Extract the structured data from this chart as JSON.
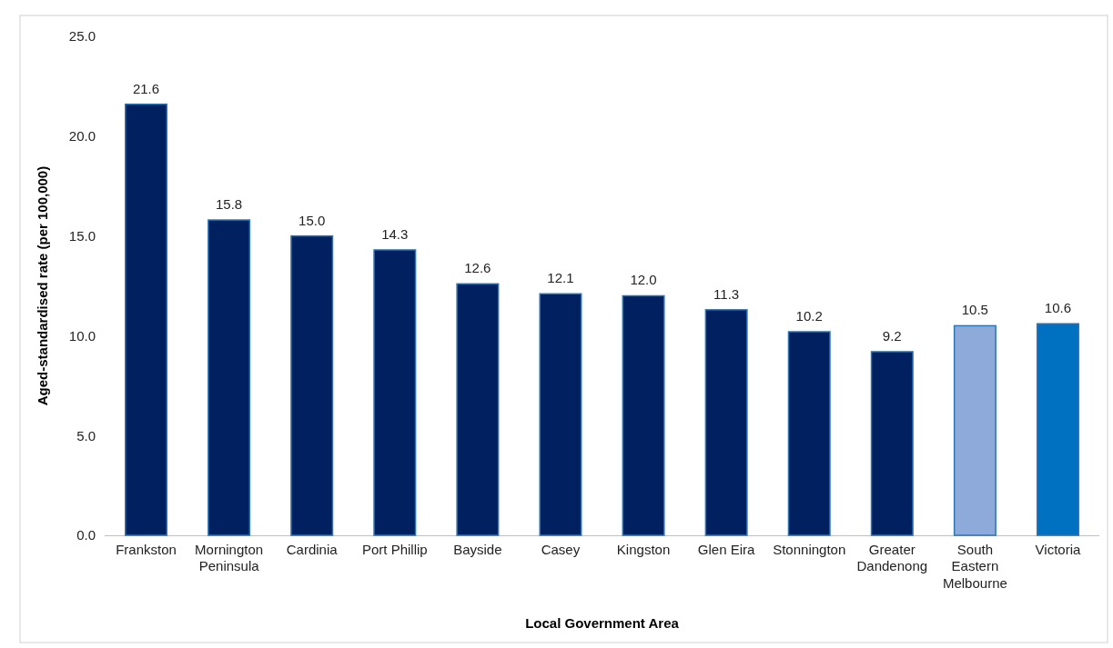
{
  "chart_data": {
    "type": "bar",
    "xlabel": "Local Government Area",
    "ylabel": "Aged-standardised rate (per 100,000)",
    "categories": [
      "Frankston",
      "Mornington Peninsula",
      "Cardinia",
      "Port Phillip",
      "Bayside",
      "Casey",
      "Kingston",
      "Glen Eira",
      "Stonnington",
      "Greater Dandenong",
      "South Eastern Melbourne",
      "Victoria"
    ],
    "values": [
      21.6,
      15.8,
      15.0,
      14.3,
      12.6,
      12.1,
      12.0,
      11.3,
      10.2,
      9.2,
      10.5,
      10.6
    ],
    "colors": [
      "#002060",
      "#002060",
      "#002060",
      "#002060",
      "#002060",
      "#002060",
      "#002060",
      "#002060",
      "#002060",
      "#002060",
      "#8eaadb",
      "#0070c0"
    ],
    "ylim": [
      0,
      25
    ],
    "yticks": [
      {
        "value": 0,
        "label": "0.0"
      },
      {
        "value": 5,
        "label": "5.0"
      },
      {
        "value": 10,
        "label": "10.0"
      },
      {
        "value": 15,
        "label": "15.0"
      },
      {
        "value": 20,
        "label": "20.0"
      },
      {
        "value": 25,
        "label": "25.0"
      }
    ],
    "value_labels": [
      "21.6",
      "15.8",
      "15.0",
      "14.3",
      "12.6",
      "12.1",
      "12.0",
      "11.3",
      "10.2",
      "9.2",
      "10.5",
      "10.6"
    ],
    "grid": false
  }
}
